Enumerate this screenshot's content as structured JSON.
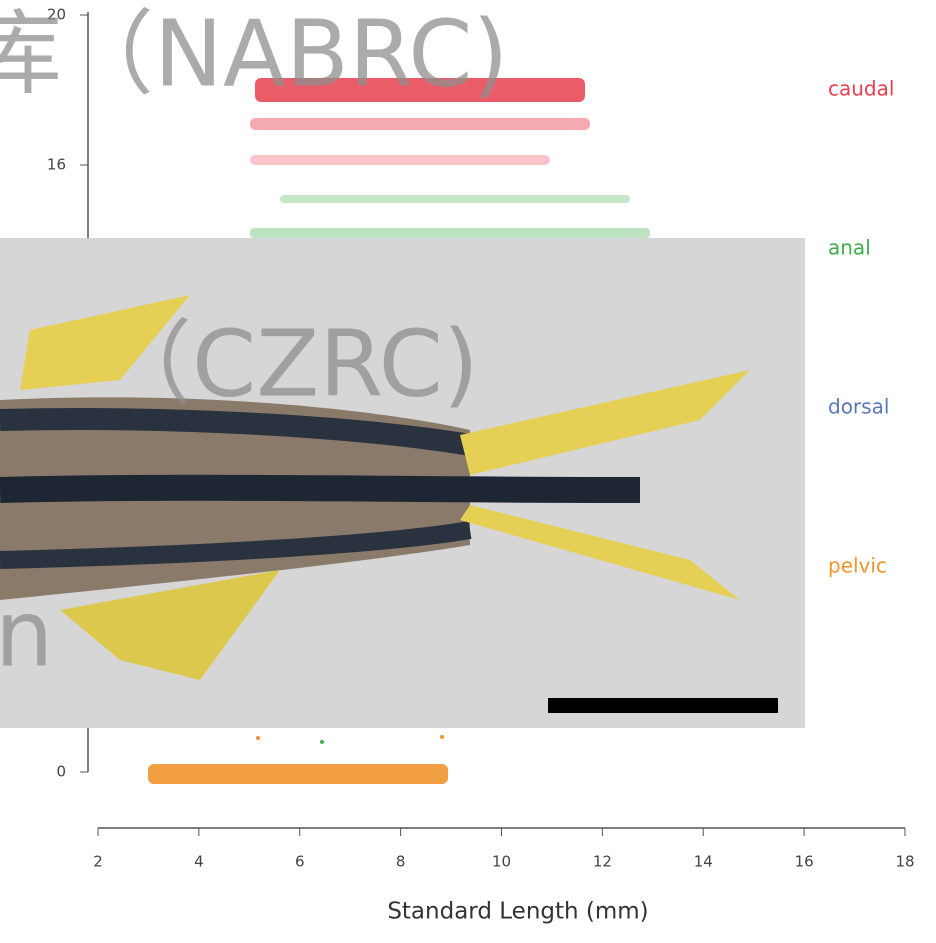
{
  "figure": {
    "y_axis": {
      "ticks": [
        "20",
        "16",
        "0"
      ]
    },
    "x_axis": {
      "ticks": [
        "2",
        "4",
        "6",
        "8",
        "10",
        "12",
        "14",
        "16",
        "18"
      ],
      "title": "Standard Length (mm)"
    },
    "legend": [
      {
        "label": "caudal",
        "color": "#e8404f"
      },
      {
        "label": "anal",
        "color": "#3fae4a"
      },
      {
        "label": "dorsal",
        "color": "#5a78b8"
      },
      {
        "label": "pelvic",
        "color": "#f0952e"
      }
    ],
    "watermarks": [
      "库（NABRC)",
      "（CZRC)",
      "n"
    ]
  }
}
